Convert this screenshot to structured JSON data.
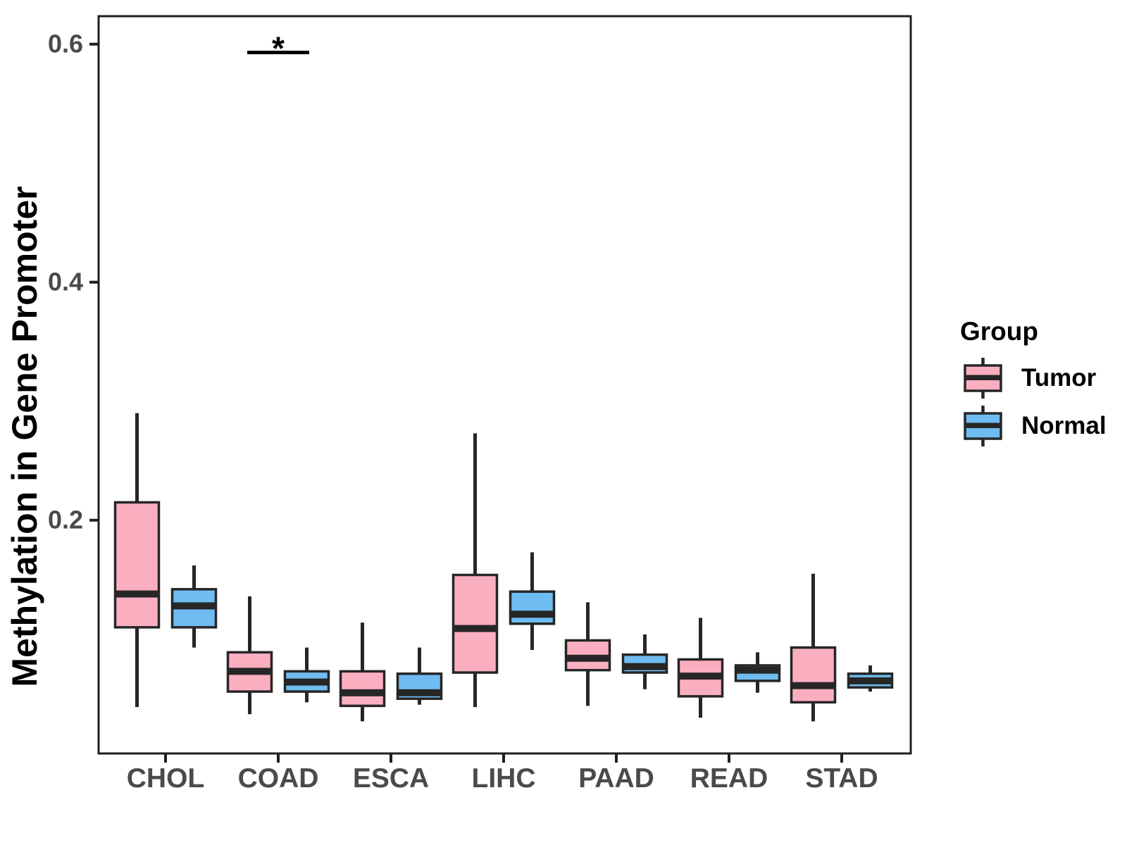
{
  "figure": {
    "background": "#ffffff"
  },
  "y_axis": {
    "title": "Methylation in Gene Promoter",
    "tick_labels": [
      "0.2",
      "0.4",
      "0.6"
    ]
  },
  "x_axis": {
    "tick_labels": [
      "CHOL",
      "COAD",
      "ESCA",
      "LIHC",
      "PAAD",
      "READ",
      "STAD"
    ]
  },
  "legend": {
    "title": "Group",
    "entries": [
      {
        "label": "Tumor",
        "color": "#FAAFC1"
      },
      {
        "label": "Normal",
        "color": "#6FBCF2"
      }
    ]
  },
  "chart_data": {
    "type": "boxplot",
    "title": "",
    "xlabel": "",
    "ylabel": "Methylation in Gene Promoter",
    "categories": [
      "CHOL",
      "COAD",
      "ESCA",
      "LIHC",
      "PAAD",
      "READ",
      "STAD"
    ],
    "yticks": [
      0.2,
      0.4,
      0.6
    ],
    "ytick_labels": [
      "0.2",
      "0.4",
      "0.6"
    ],
    "ylim": [
      0.004,
      0.6235
    ],
    "grid": false,
    "legend_position": "right",
    "box_outline_color": "#262626",
    "panel_border_color": "#1f1f1f",
    "tick_label_color": "#4a4a4a",
    "series": [
      {
        "name": "Tumor",
        "color": "#FAAFC1",
        "boxes": [
          {
            "category": "CHOL",
            "whisker_low": 0.043,
            "q1": 0.11,
            "median": 0.138,
            "q3": 0.215,
            "whisker_high": 0.29
          },
          {
            "category": "COAD",
            "whisker_low": 0.037,
            "q1": 0.056,
            "median": 0.073,
            "q3": 0.089,
            "whisker_high": 0.136
          },
          {
            "category": "ESCA",
            "whisker_low": 0.031,
            "q1": 0.044,
            "median": 0.055,
            "q3": 0.073,
            "whisker_high": 0.114
          },
          {
            "category": "LIHC",
            "whisker_low": 0.043,
            "q1": 0.072,
            "median": 0.109,
            "q3": 0.154,
            "whisker_high": 0.273
          },
          {
            "category": "PAAD",
            "whisker_low": 0.044,
            "q1": 0.074,
            "median": 0.084,
            "q3": 0.099,
            "whisker_high": 0.131
          },
          {
            "category": "READ",
            "whisker_low": 0.034,
            "q1": 0.052,
            "median": 0.069,
            "q3": 0.083,
            "whisker_high": 0.118
          },
          {
            "category": "STAD",
            "whisker_low": 0.031,
            "q1": 0.047,
            "median": 0.061,
            "q3": 0.093,
            "whisker_high": 0.155
          }
        ]
      },
      {
        "name": "Normal",
        "color": "#6FBCF2",
        "boxes": [
          {
            "category": "CHOL",
            "whisker_low": 0.093,
            "q1": 0.11,
            "median": 0.128,
            "q3": 0.142,
            "whisker_high": 0.162
          },
          {
            "category": "COAD",
            "whisker_low": 0.047,
            "q1": 0.056,
            "median": 0.064,
            "q3": 0.073,
            "whisker_high": 0.093
          },
          {
            "category": "ESCA",
            "whisker_low": 0.045,
            "q1": 0.05,
            "median": 0.055,
            "q3": 0.071,
            "whisker_high": 0.093
          },
          {
            "category": "LIHC",
            "whisker_low": 0.091,
            "q1": 0.113,
            "median": 0.121,
            "q3": 0.14,
            "whisker_high": 0.173
          },
          {
            "category": "PAAD",
            "whisker_low": 0.058,
            "q1": 0.072,
            "median": 0.077,
            "q3": 0.087,
            "whisker_high": 0.104
          },
          {
            "category": "READ",
            "whisker_low": 0.055,
            "q1": 0.065,
            "median": 0.074,
            "q3": 0.078,
            "whisker_high": 0.089
          },
          {
            "category": "STAD",
            "whisker_low": 0.056,
            "q1": 0.0595,
            "median": 0.065,
            "q3": 0.071,
            "whisker_high": 0.078
          }
        ]
      }
    ],
    "annotations": [
      {
        "category": "COAD",
        "label": "*",
        "y": 0.593
      }
    ]
  }
}
